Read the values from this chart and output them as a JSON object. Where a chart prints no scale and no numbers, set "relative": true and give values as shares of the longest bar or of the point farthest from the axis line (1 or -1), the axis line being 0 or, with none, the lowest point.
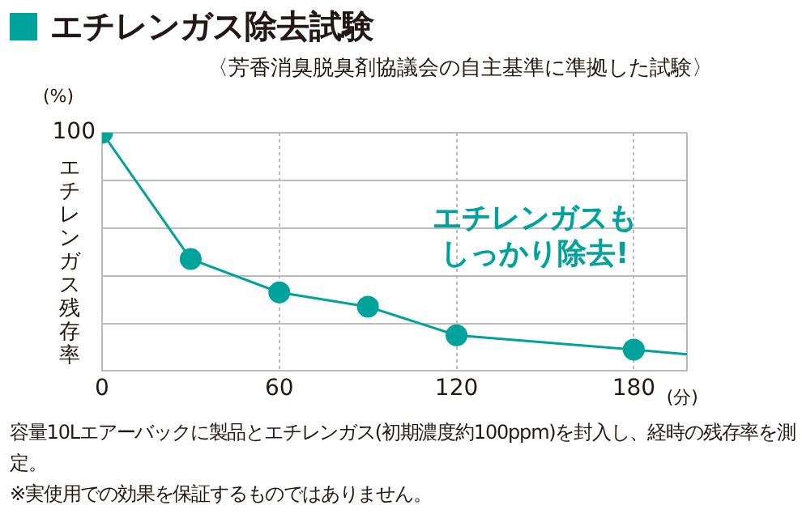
{
  "chart_data": {
    "type": "line",
    "title": "エチレンガス除去試験",
    "subtitle": "〈芳香消臭脱臭剤協議会の自主基準に準拠した試験〉",
    "xlabel": "(分)",
    "ylabel": "エチレンガス残存率",
    "annotations": [
      "(%)",
      "100",
      "エチレンガスも",
      "しっかり除去!",
      "容量10Lエアーバックに製品とエチレンガス(初期濃度約100ppm)を封入し、経時の残存率を測定。",
      "※実使用での効果を保証するものではありません。"
    ],
    "relative": true,
    "series": [
      {
        "color": "#00a39b",
        "x": [
          0,
          30,
          60,
          90,
          120,
          180
        ],
        "values": [
          1,
          0.47,
          0.33,
          0.27,
          0.15,
          0.09
        ],
        "marker": "circle"
      },
      {
        "color": "#00a39b",
        "x": [
          180,
          198
        ],
        "values": [
          0.09,
          0.07
        ],
        "marker": "none"
      }
    ],
    "xlim": [
      0,
      198
    ],
    "xticks": [
      0,
      60,
      120,
      180
    ],
    "grid": true,
    "legend": false,
    "tick_labels": "x"
  }
}
